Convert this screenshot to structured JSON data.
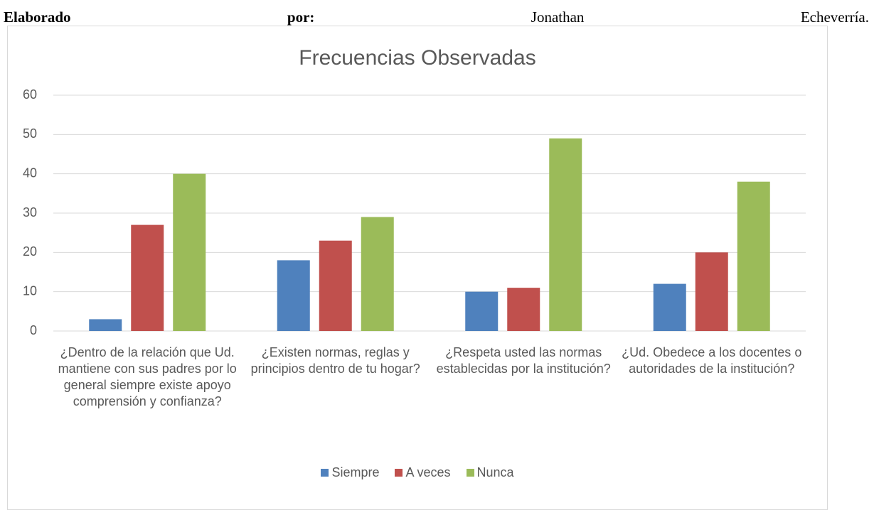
{
  "header": {
    "words": [
      "Elaborado",
      "por:",
      "Jonathan",
      "Echeverría."
    ]
  },
  "chart_data": {
    "type": "bar",
    "title": "Frecuencias Observadas",
    "categories": [
      "¿Dentro de la relación que Ud. mantiene con sus padres por lo general siempre existe apoyo comprensión y confianza?",
      "¿Existen normas, reglas y principios dentro de tu hogar?",
      "¿Respeta usted las normas establecidas por la institución?",
      "¿Ud. Obedece a los docentes o autoridades de la institución?"
    ],
    "series": [
      {
        "name": "Siempre",
        "color": "#4f81bd",
        "values": [
          3,
          18,
          10,
          12
        ]
      },
      {
        "name": "A veces",
        "color": "#c0504d",
        "values": [
          27,
          23,
          11,
          20
        ]
      },
      {
        "name": "Nunca",
        "color": "#9bbb59",
        "values": [
          40,
          29,
          49,
          38
        ]
      }
    ],
    "ylim": [
      0,
      60
    ],
    "yticks": [
      0,
      10,
      20,
      30,
      40,
      50,
      60
    ],
    "grid": true,
    "legend": "bottom"
  }
}
